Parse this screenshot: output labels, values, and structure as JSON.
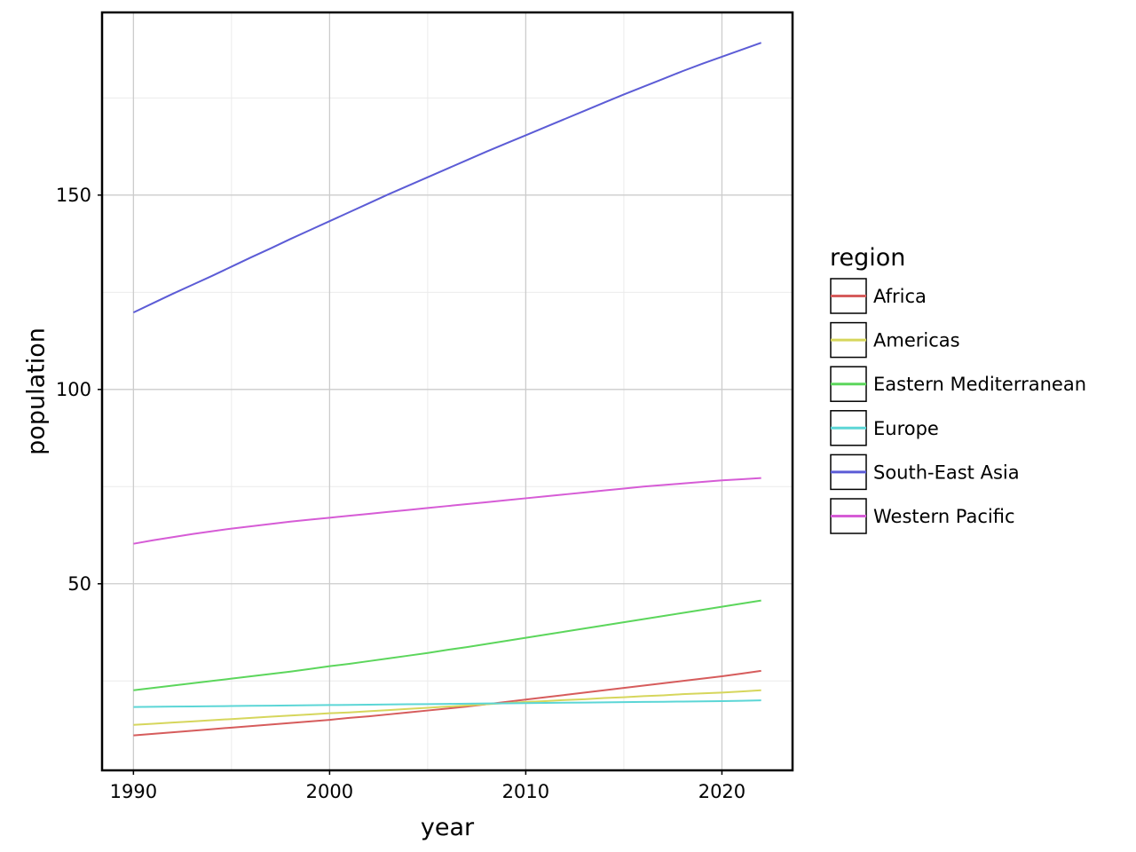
{
  "chart_data": {
    "type": "line",
    "title": "",
    "xlabel": "year",
    "ylabel": "population",
    "xlim": [
      1988.4,
      2023.6
    ],
    "ylim": [
      2,
      197
    ],
    "x_ticks": [
      1990,
      2000,
      2010,
      2020
    ],
    "y_ticks": [
      50,
      100,
      150
    ],
    "grid": true,
    "legend": {
      "title": "region",
      "placement": "right"
    },
    "x": [
      1990,
      1991,
      1992,
      1993,
      1994,
      1995,
      1996,
      1997,
      1998,
      1999,
      2000,
      2001,
      2002,
      2003,
      2004,
      2005,
      2006,
      2007,
      2008,
      2009,
      2010,
      2011,
      2012,
      2013,
      2014,
      2015,
      2016,
      2017,
      2018,
      2019,
      2020,
      2021,
      2022
    ],
    "series": [
      {
        "name": "Africa",
        "color": "#d65c5c",
        "values": [
          11.0,
          11.4,
          11.8,
          12.2,
          12.6,
          13.0,
          13.4,
          13.8,
          14.2,
          14.6,
          15.0,
          15.5,
          15.9,
          16.4,
          16.9,
          17.4,
          17.9,
          18.4,
          19.0,
          19.6,
          20.2,
          20.8,
          21.4,
          22.0,
          22.6,
          23.2,
          23.8,
          24.4,
          25.0,
          25.6,
          26.2,
          26.9,
          27.6
        ]
      },
      {
        "name": "Americas",
        "color": "#d6d65c",
        "values": [
          13.7,
          14.0,
          14.3,
          14.6,
          14.9,
          15.2,
          15.5,
          15.8,
          16.1,
          16.4,
          16.7,
          16.9,
          17.2,
          17.5,
          17.8,
          18.1,
          18.4,
          18.7,
          19.0,
          19.3,
          19.6,
          19.8,
          20.1,
          20.3,
          20.6,
          20.8,
          21.1,
          21.3,
          21.6,
          21.8,
          22.0,
          22.3,
          22.6
        ]
      },
      {
        "name": "Eastern Mediterranean",
        "color": "#5cd65c",
        "values": [
          22.6,
          23.2,
          23.8,
          24.4,
          25.0,
          25.6,
          26.2,
          26.8,
          27.4,
          28.1,
          28.8,
          29.4,
          30.1,
          30.8,
          31.5,
          32.2,
          33.0,
          33.7,
          34.5,
          35.3,
          36.1,
          36.9,
          37.7,
          38.5,
          39.3,
          40.1,
          40.9,
          41.7,
          42.5,
          43.3,
          44.1,
          44.9,
          45.7
        ]
      },
      {
        "name": "Europe",
        "color": "#5cd6d6",
        "values": [
          18.3,
          18.35,
          18.4,
          18.45,
          18.5,
          18.55,
          18.6,
          18.65,
          18.7,
          18.75,
          18.8,
          18.85,
          18.9,
          18.95,
          19.0,
          19.05,
          19.1,
          19.15,
          19.2,
          19.25,
          19.3,
          19.35,
          19.4,
          19.45,
          19.5,
          19.55,
          19.6,
          19.65,
          19.7,
          19.75,
          19.8,
          19.9,
          20.0
        ]
      },
      {
        "name": "South-East Asia",
        "color": "#5c5cd6",
        "values": [
          119.8,
          122.2,
          124.6,
          126.9,
          129.2,
          131.6,
          134.0,
          136.3,
          138.7,
          141.0,
          143.3,
          145.6,
          147.9,
          150.2,
          152.4,
          154.6,
          156.8,
          159.0,
          161.2,
          163.3,
          165.4,
          167.5,
          169.6,
          171.7,
          173.8,
          175.9,
          177.9,
          179.9,
          181.9,
          183.8,
          185.6,
          187.4,
          189.2
        ]
      },
      {
        "name": "Western Pacific",
        "color": "#d65cd6",
        "values": [
          60.3,
          61.2,
          62.0,
          62.8,
          63.5,
          64.2,
          64.8,
          65.4,
          66.0,
          66.5,
          67.0,
          67.5,
          68.0,
          68.5,
          69.0,
          69.5,
          70.0,
          70.5,
          71.0,
          71.5,
          72.0,
          72.5,
          73.0,
          73.5,
          74.0,
          74.5,
          75.0,
          75.4,
          75.8,
          76.2,
          76.6,
          76.9,
          77.2
        ]
      }
    ]
  }
}
